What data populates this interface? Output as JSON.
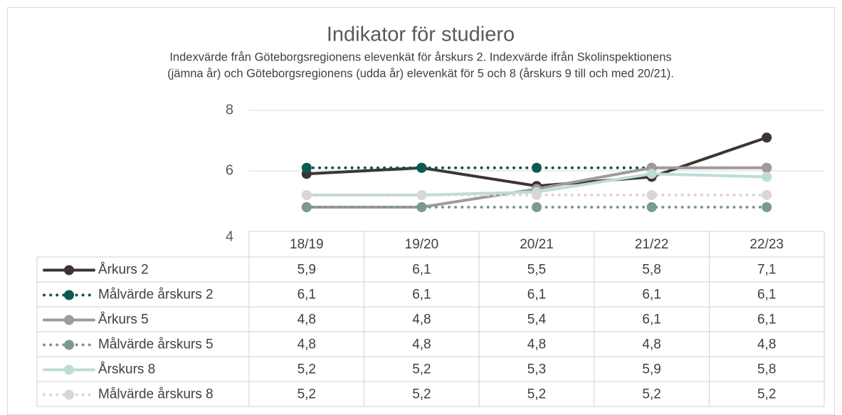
{
  "chart_data": {
    "type": "line",
    "title": "Indikator för studiero",
    "subtitle": [
      "Indexvärde från Göteborgsregionens elevenkät för årskurs 2. Indexvärde ifrån Skolinspektionens",
      "(jämna år) och Göteborgsregionens (udda år) elevenkät för 5 och 8 (årskurs 9 till och med 20/21)."
    ],
    "categories": [
      "18/19",
      "19/20",
      "20/21",
      "21/22",
      "22/23"
    ],
    "ylim": [
      4,
      8
    ],
    "yticks": [
      4,
      6,
      8
    ],
    "grid": true,
    "series": [
      {
        "name": "Årkurs 2",
        "color": "#3d3532",
        "style": "solid",
        "values": [
          5.9,
          6.1,
          5.5,
          5.8,
          7.1
        ],
        "value_labels": [
          "5,9",
          "6,1",
          "5,5",
          "5,8",
          "7,1"
        ]
      },
      {
        "name": "Målvärde årskurs 2",
        "color": "#0b5a4e",
        "style": "dotted",
        "values": [
          6.1,
          6.1,
          6.1,
          6.1,
          6.1
        ],
        "value_labels": [
          "6,1",
          "6,1",
          "6,1",
          "6,1",
          "6,1"
        ]
      },
      {
        "name": "Årkurs 5",
        "color": "#a09a9a",
        "style": "solid",
        "values": [
          4.8,
          4.8,
          5.4,
          6.1,
          6.1
        ],
        "value_labels": [
          "4,8",
          "4,8",
          "5,4",
          "6,1",
          "6,1"
        ]
      },
      {
        "name": "Målvärde årskurs 5",
        "color": "#7a9a8e",
        "style": "dotted",
        "values": [
          4.8,
          4.8,
          4.8,
          4.8,
          4.8
        ],
        "value_labels": [
          "4,8",
          "4,8",
          "4,8",
          "4,8",
          "4,8"
        ]
      },
      {
        "name": "Årskurs 8",
        "color": "#bcdcd8",
        "style": "solid",
        "values": [
          5.2,
          5.2,
          5.3,
          5.9,
          5.8
        ],
        "value_labels": [
          "5,2",
          "5,2",
          "5,3",
          "5,9",
          "5,8"
        ]
      },
      {
        "name": "Målvärde årskurs 8",
        "color": "#d9d6d6",
        "style": "dotted",
        "values": [
          5.2,
          5.2,
          5.2,
          5.2,
          5.2
        ],
        "value_labels": [
          "5,2",
          "5,2",
          "5,2",
          "5,2",
          "5,2"
        ]
      }
    ]
  }
}
